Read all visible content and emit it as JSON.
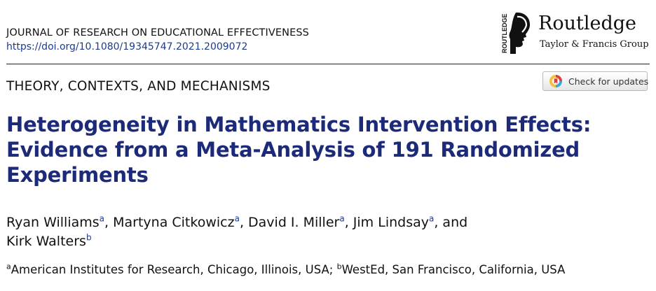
{
  "header": {
    "journal": "JOURNAL OF RESEARCH ON EDUCATIONAL EFFECTIVENESS",
    "doi": "https://doi.org/10.1080/19345747.2021.2009072"
  },
  "publisher": {
    "name": "Routledge",
    "subtitle": "Taylor & Francis Group",
    "vertical_text": "ROUTLEDGE",
    "logo_icon": "routledge-head-logo"
  },
  "section_label": "THEORY, CONTEXTS, AND MECHANISMS",
  "check_updates": {
    "label": "Check for updates",
    "icon": "crossmark-icon"
  },
  "title_lines": [
    "Heterogeneity in Mathematics Intervention Effects:",
    "Evidence from a Meta-Analysis of 191 Randomized",
    "Experiments"
  ],
  "authors": [
    {
      "name": "Ryan Williams",
      "aff": "a",
      "sep": ", "
    },
    {
      "name": "Martyna Citkowicz",
      "aff": "a",
      "sep": ", "
    },
    {
      "name": "David I. Miller",
      "aff": "a",
      "sep": ", "
    },
    {
      "name": "Jim Lindsay",
      "aff": "a",
      "sep": ", and"
    },
    {
      "name": "Kirk Walters",
      "aff": "b",
      "sep": ""
    }
  ],
  "affiliations": [
    {
      "key": "a",
      "text": "American Institutes for Research, Chicago, Illinois, USA",
      "sep": "; "
    },
    {
      "key": "b",
      "text": "WestEd, San Francisco, California, USA",
      "sep": ""
    }
  ]
}
